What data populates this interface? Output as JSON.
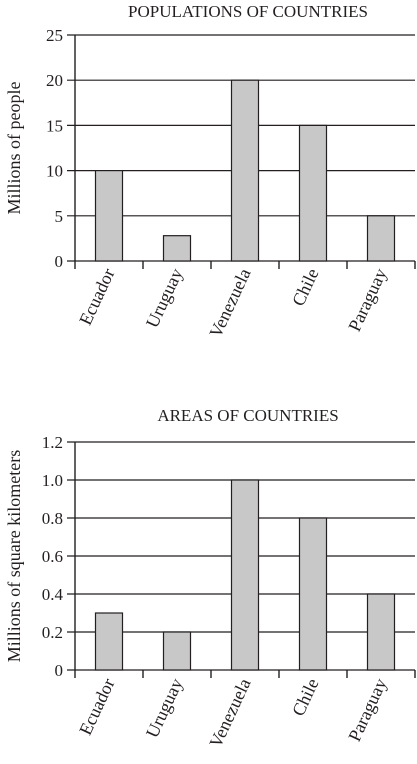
{
  "chart_data": [
    {
      "type": "bar",
      "title": "POPULATIONS OF COUNTRIES",
      "ylabel": "Millions of people",
      "xlabel": "",
      "categories": [
        "Ecuador",
        "Uruguay",
        "Venezuela",
        "Chile",
        "Paraguay"
      ],
      "values": [
        10,
        2.8,
        20,
        15,
        5
      ],
      "ylim": [
        0,
        25
      ],
      "yticks": [
        0,
        5,
        10,
        15,
        20,
        25
      ],
      "ytick_labels": [
        "0",
        "5",
        "10",
        "15",
        "20",
        "25"
      ],
      "grid": true,
      "bar_color": "#c8c8c8"
    },
    {
      "type": "bar",
      "title": "AREAS OF COUNTRIES",
      "ylabel": "Millions of square kilometers",
      "xlabel": "",
      "categories": [
        "Ecuador",
        "Uruguay",
        "Venezuela",
        "Chile",
        "Paraguay"
      ],
      "values": [
        0.3,
        0.2,
        1.0,
        0.8,
        0.4
      ],
      "ylim": [
        0,
        1.2
      ],
      "yticks": [
        0,
        0.2,
        0.4,
        0.6,
        0.8,
        1.0,
        1.2
      ],
      "ytick_labels": [
        "0",
        "0.2",
        "0.4",
        "0.6",
        "0.8",
        "1.0",
        "1.2"
      ],
      "grid": true,
      "bar_color": "#c8c8c8"
    }
  ]
}
